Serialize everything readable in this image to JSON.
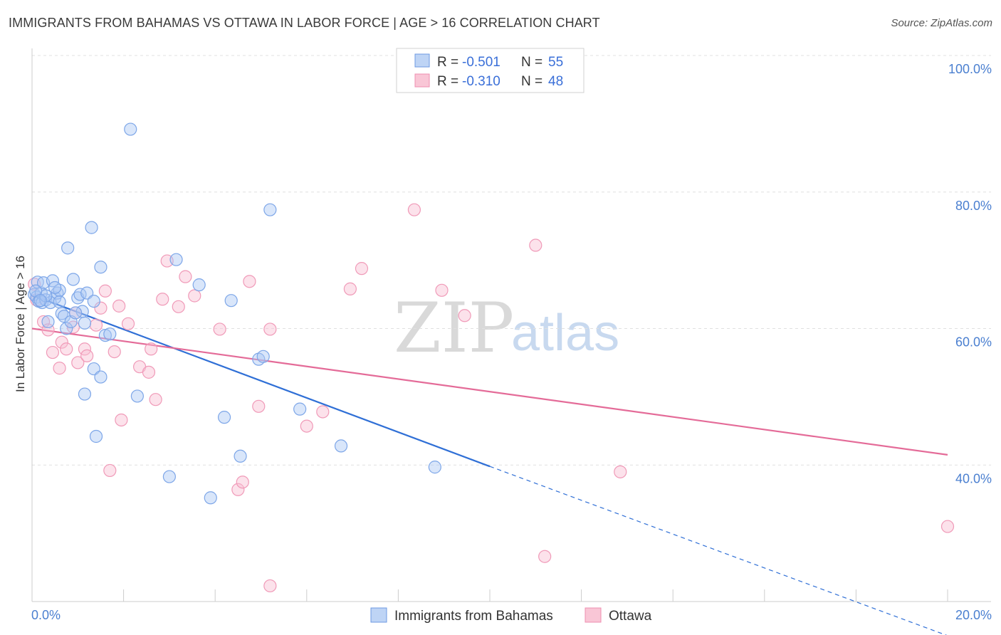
{
  "header": {
    "title": "IMMIGRANTS FROM BAHAMAS VS OTTAWA IN LABOR FORCE | AGE > 16 CORRELATION CHART",
    "source": "Source: ZipAtlas.com"
  },
  "watermark": {
    "zip": "ZIP",
    "atlas": "atlas"
  },
  "legend_top": [
    {
      "r_label": "R = ",
      "r_value": "-0.501",
      "n_label": "N = ",
      "n_value": "55"
    },
    {
      "r_label": "R = ",
      "r_value": "-0.310",
      "n_label": "N = ",
      "n_value": "48"
    }
  ],
  "chart_data": {
    "type": "scatter",
    "title": "IMMIGRANTS FROM BAHAMAS VS OTTAWA IN LABOR FORCE | AGE > 16 CORRELATION CHART",
    "xlabel": "",
    "ylabel": "In Labor Force | Age > 16",
    "xlim": [
      0,
      20
    ],
    "ylim": [
      20,
      100
    ],
    "x_tick_labels": [
      "0.0%",
      "20.0%"
    ],
    "y_ticks": [
      40,
      60,
      80,
      100
    ],
    "y_tick_labels": [
      "40.0%",
      "60.0%",
      "80.0%",
      "100.0%"
    ],
    "grid": true,
    "legend_position": "top-center",
    "colors": {
      "bahamas": "#4a86e8",
      "ottawa": "#f07aa0",
      "bahamas_line": "#2f6fd6",
      "ottawa_line": "#e46b98"
    },
    "series": [
      {
        "name": "Immigrants from Bahamas",
        "points": [
          [
            0.05,
            65.0
          ],
          [
            0.1,
            64.6
          ],
          [
            0.12,
            66.8
          ],
          [
            0.15,
            64.0
          ],
          [
            0.2,
            65.2
          ],
          [
            0.22,
            63.8
          ],
          [
            0.25,
            66.7
          ],
          [
            0.3,
            64.2
          ],
          [
            0.35,
            61.0
          ],
          [
            0.4,
            63.8
          ],
          [
            0.45,
            67.0
          ],
          [
            0.5,
            64.5
          ],
          [
            0.55,
            65.2
          ],
          [
            0.6,
            65.6
          ],
          [
            0.65,
            62.2
          ],
          [
            0.7,
            61.8
          ],
          [
            0.75,
            60.0
          ],
          [
            0.78,
            71.8
          ],
          [
            0.85,
            61.0
          ],
          [
            0.9,
            67.2
          ],
          [
            1.0,
            64.5
          ],
          [
            1.05,
            65.0
          ],
          [
            1.1,
            62.5
          ],
          [
            1.15,
            60.8
          ],
          [
            1.15,
            50.4
          ],
          [
            1.2,
            65.2
          ],
          [
            1.3,
            74.8
          ],
          [
            1.35,
            64.0
          ],
          [
            1.35,
            54.1
          ],
          [
            1.4,
            44.2
          ],
          [
            1.5,
            52.9
          ],
          [
            1.5,
            69.0
          ],
          [
            1.6,
            59.0
          ],
          [
            1.7,
            59.2
          ],
          [
            2.15,
            89.2
          ],
          [
            2.3,
            50.1
          ],
          [
            3.0,
            38.3
          ],
          [
            3.15,
            70.1
          ],
          [
            3.65,
            66.4
          ],
          [
            3.9,
            35.2
          ],
          [
            4.2,
            47.0
          ],
          [
            4.35,
            64.1
          ],
          [
            4.55,
            41.3
          ],
          [
            4.95,
            55.5
          ],
          [
            5.05,
            55.9
          ],
          [
            5.2,
            77.4
          ],
          [
            5.85,
            48.2
          ],
          [
            6.75,
            42.8
          ],
          [
            8.8,
            39.7
          ],
          [
            0.3,
            64.8
          ],
          [
            0.6,
            63.9
          ],
          [
            0.95,
            62.3
          ],
          [
            0.08,
            65.5
          ],
          [
            0.18,
            64.1
          ],
          [
            0.5,
            66.0
          ]
        ]
      },
      {
        "name": "Ottawa",
        "points": [
          [
            0.05,
            66.5
          ],
          [
            0.1,
            64.2
          ],
          [
            0.25,
            61.0
          ],
          [
            0.35,
            59.8
          ],
          [
            0.45,
            56.5
          ],
          [
            0.6,
            54.2
          ],
          [
            0.65,
            58.0
          ],
          [
            0.75,
            57.0
          ],
          [
            0.9,
            60.2
          ],
          [
            0.95,
            62.3
          ],
          [
            1.0,
            55.0
          ],
          [
            1.15,
            57.0
          ],
          [
            1.2,
            56.0
          ],
          [
            1.4,
            60.5
          ],
          [
            1.5,
            63.0
          ],
          [
            1.6,
            65.5
          ],
          [
            1.7,
            39.2
          ],
          [
            1.8,
            56.6
          ],
          [
            1.9,
            63.3
          ],
          [
            1.95,
            46.6
          ],
          [
            2.1,
            60.7
          ],
          [
            2.35,
            54.4
          ],
          [
            2.55,
            53.6
          ],
          [
            2.6,
            57.0
          ],
          [
            2.7,
            49.6
          ],
          [
            2.85,
            64.3
          ],
          [
            2.95,
            69.9
          ],
          [
            3.2,
            63.2
          ],
          [
            3.35,
            67.6
          ],
          [
            3.55,
            64.8
          ],
          [
            4.1,
            59.9
          ],
          [
            4.5,
            36.4
          ],
          [
            4.6,
            37.5
          ],
          [
            4.75,
            66.9
          ],
          [
            4.95,
            48.6
          ],
          [
            5.2,
            22.3
          ],
          [
            5.2,
            59.9
          ],
          [
            6.0,
            45.7
          ],
          [
            6.35,
            47.8
          ],
          [
            6.95,
            65.8
          ],
          [
            7.2,
            68.8
          ],
          [
            8.35,
            77.4
          ],
          [
            8.95,
            65.6
          ],
          [
            9.45,
            61.9
          ],
          [
            11.0,
            72.2
          ],
          [
            11.2,
            26.6
          ],
          [
            12.85,
            39.0
          ],
          [
            20.0,
            31.0
          ]
        ]
      }
    ],
    "trend_lines": [
      {
        "series": "Immigrants from Bahamas",
        "x": [
          0,
          10
        ],
        "y": [
          64.9,
          39.8
        ],
        "dashed_extension_to": [
          20,
          15.0
        ]
      },
      {
        "series": "Ottawa",
        "x": [
          0,
          20
        ],
        "y": [
          60.0,
          41.5
        ]
      }
    ]
  }
}
